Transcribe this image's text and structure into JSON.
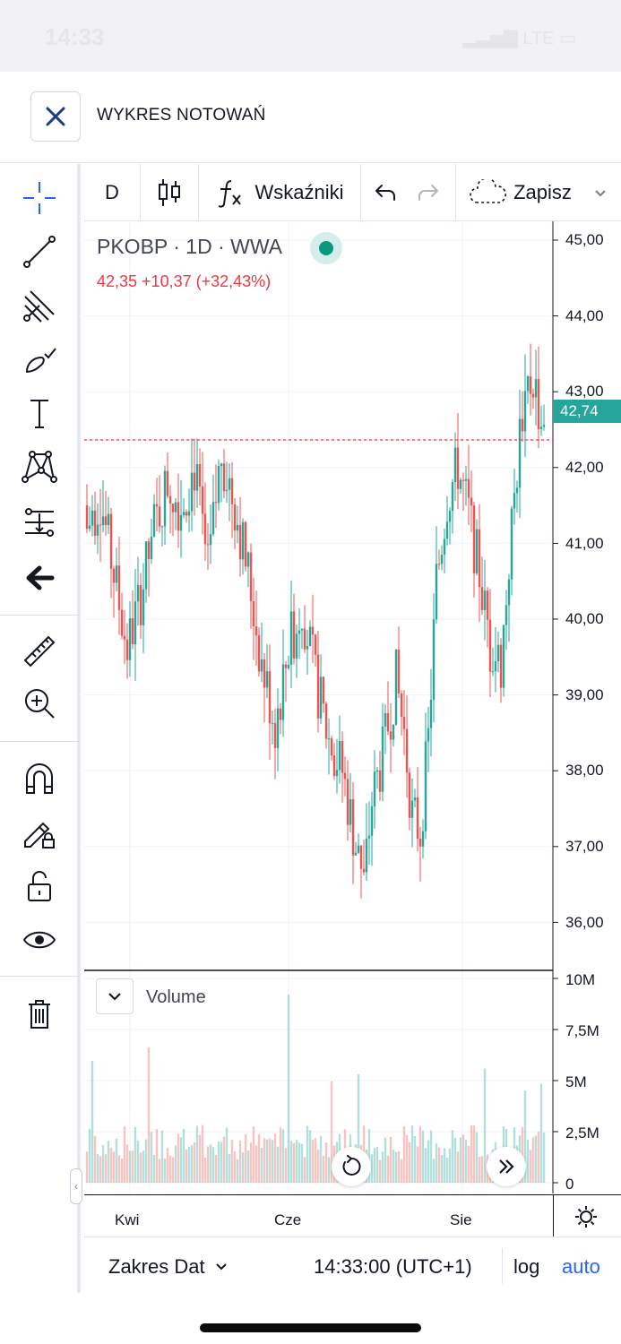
{
  "status_bar": {
    "time": "14:33",
    "network": "LTE"
  },
  "header": {
    "title": "WYKRES NOTOWAŃ"
  },
  "toolbar": {
    "interval": "D",
    "indicators_label": "Wskaźniki",
    "save_label": "Zapisz"
  },
  "legend": {
    "symbol": "PKOBP · 1D · WWA",
    "values": "42,35 +10,37 (+32,43%)"
  },
  "price_axis": [
    "45,00",
    "44,00",
    "43,00",
    "42,00",
    "41,00",
    "40,00",
    "39,00",
    "38,00",
    "37,00",
    "36,00"
  ],
  "last_price": "42,74",
  "volume": {
    "label": "Volume",
    "axis": [
      "10M",
      "7,5M",
      "5M",
      "2,5M",
      "0"
    ]
  },
  "time_axis": [
    "Kwi",
    "Cze",
    "Sie"
  ],
  "bottom_bar": {
    "date_range": "Zakres Dat",
    "time": "14:33:00 (UTC+1)",
    "log": "log",
    "auto": "auto"
  },
  "colors": {
    "up": "#26a69a",
    "down": "#ef5350",
    "accent": "#2962ff",
    "header_x": "#1e3a8a"
  },
  "icons": [
    "crosshair-icon",
    "trend-line-icon",
    "pitchfork-icon",
    "brush-icon",
    "text-icon",
    "pattern-icon",
    "prediction-icon",
    "back-arrow-icon",
    "ruler-icon",
    "zoom-in-icon",
    "magnet-icon",
    "lock-drawing-icon",
    "unlock-icon",
    "eye-icon",
    "trash-icon",
    "settings-icon",
    "reset-icon",
    "scroll-right-icon",
    "chevron-down-icon",
    "undo-icon",
    "redo-icon",
    "cloud-icon",
    "close-icon"
  ]
}
